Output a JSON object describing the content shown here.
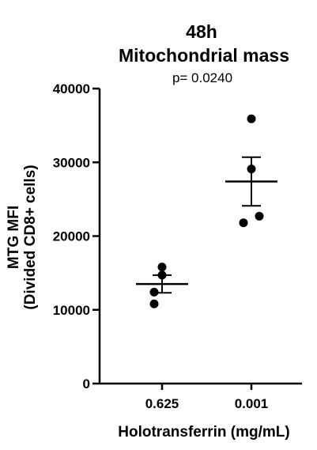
{
  "chart_data": {
    "type": "scatter",
    "title": "48h",
    "subtitle": "Mitochondrial mass",
    "annotation": "p= 0.0240",
    "ylabel_line1": "MTG MFI",
    "ylabel_line2": "(Divided CD8+ cells)",
    "xlabel": "Holotransferrin (mg/mL)",
    "ylim": [
      0,
      40000
    ],
    "yticks": [
      0,
      10000,
      20000,
      30000,
      40000
    ],
    "ytick_labels": [
      "0",
      "10000",
      "20000",
      "30000",
      "40000"
    ],
    "categories": [
      "0.625",
      "0.001"
    ],
    "groups": [
      {
        "category": "0.625",
        "points": [
          15800,
          14700,
          12400,
          10800
        ],
        "mean": 13500,
        "sem_low": 12300,
        "sem_high": 14700
      },
      {
        "category": "0.001",
        "points": [
          35900,
          29100,
          22700,
          21800
        ],
        "mean": 27400,
        "sem_low": 24100,
        "sem_high": 30700
      }
    ],
    "point_color": "#000000"
  }
}
